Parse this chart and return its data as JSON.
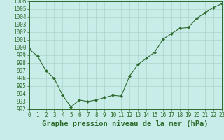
{
  "x": [
    0,
    1,
    2,
    3,
    4,
    5,
    6,
    7,
    8,
    9,
    10,
    11,
    12,
    13,
    14,
    15,
    16,
    17,
    18,
    19,
    20,
    21,
    22,
    23
  ],
  "y": [
    999.8,
    998.9,
    997.0,
    996.0,
    993.8,
    992.3,
    993.2,
    993.0,
    993.2,
    993.5,
    993.8,
    993.7,
    996.3,
    997.8,
    998.6,
    999.4,
    1001.1,
    1001.8,
    1002.5,
    1002.6,
    1003.8,
    1004.5,
    1005.2,
    1005.7
  ],
  "line_color": "#2d6a2d",
  "marker_color": "#2d6a2d",
  "bg_color": "#c8ede8",
  "grid_color": "#aad4cc",
  "xlabel": "Graphe pression niveau de la mer (hPa)",
  "ylim_min": 992,
  "ylim_max": 1006,
  "xlim_min": 0,
  "xlim_max": 23,
  "ytick_step": 1,
  "xtick_labels": [
    "0",
    "1",
    "2",
    "3",
    "4",
    "5",
    "6",
    "7",
    "8",
    "9",
    "10",
    "11",
    "12",
    "13",
    "14",
    "15",
    "16",
    "17",
    "18",
    "19",
    "20",
    "21",
    "22",
    "23"
  ],
  "xlabel_fontsize": 7.5,
  "tick_fontsize": 5.5,
  "tick_color": "#2d6a2d",
  "border_color": "#2d6a2d"
}
